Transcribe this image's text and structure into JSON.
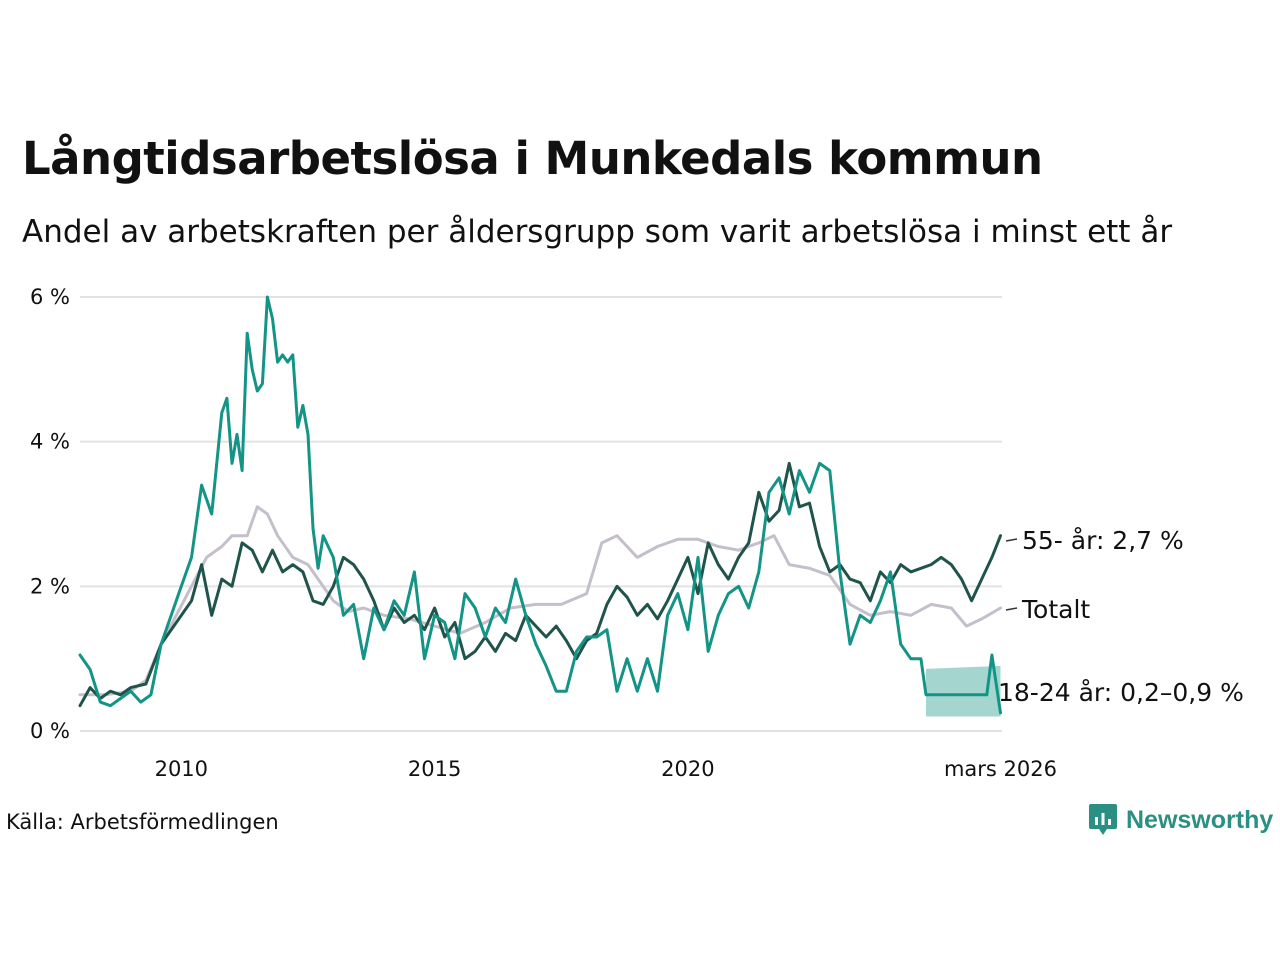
{
  "title": "Långtidsarbetslösa i Munkedals kommun",
  "subtitle": "Andel av arbetskraften per åldersgrupp som varit arbetslösa i minst ett år",
  "source": "Källa: Arbetsförmedlingen",
  "brand": {
    "name": "Newsworthy",
    "icon": "newsworthy-logo-icon"
  },
  "colors": {
    "older": "#20544a",
    "total": "#c4bfcb",
    "young": "#139486",
    "band": "#9fd4cc",
    "grid": "#e2e2e2"
  },
  "chart_data": {
    "type": "line",
    "title": "Långtidsarbetslösa i Munkedals kommun",
    "xlabel": "",
    "ylabel": "",
    "xlim": [
      2008.0,
      2026.2
    ],
    "ylim": [
      0,
      6
    ],
    "y_ticks": [
      0,
      2,
      4,
      6
    ],
    "y_tick_labels": [
      "0 %",
      "2 %",
      "4 %",
      "6 %"
    ],
    "x_ticks": [
      2010,
      2015,
      2020,
      2026.17
    ],
    "x_tick_labels": [
      "2010",
      "2015",
      "2020",
      "mars 2026"
    ],
    "grid": true,
    "series": [
      {
        "name": "Totalt",
        "label": "Totalt",
        "color_key": "total",
        "points": [
          [
            2008.0,
            0.5
          ],
          [
            2008.5,
            0.5
          ],
          [
            2009.0,
            0.55
          ],
          [
            2009.3,
            0.7
          ],
          [
            2009.6,
            1.2
          ],
          [
            2009.9,
            1.6
          ],
          [
            2010.2,
            2.0
          ],
          [
            2010.5,
            2.4
          ],
          [
            2010.8,
            2.55
          ],
          [
            2011.0,
            2.7
          ],
          [
            2011.3,
            2.7
          ],
          [
            2011.5,
            3.1
          ],
          [
            2011.7,
            3.0
          ],
          [
            2011.9,
            2.7
          ],
          [
            2012.2,
            2.4
          ],
          [
            2012.5,
            2.3
          ],
          [
            2012.7,
            2.1
          ],
          [
            2013.0,
            1.8
          ],
          [
            2013.3,
            1.65
          ],
          [
            2013.6,
            1.7
          ],
          [
            2014.0,
            1.6
          ],
          [
            2014.5,
            1.55
          ],
          [
            2015.0,
            1.45
          ],
          [
            2015.5,
            1.35
          ],
          [
            2016.0,
            1.5
          ],
          [
            2016.5,
            1.7
          ],
          [
            2017.0,
            1.75
          ],
          [
            2017.5,
            1.75
          ],
          [
            2018.0,
            1.9
          ],
          [
            2018.3,
            2.6
          ],
          [
            2018.6,
            2.7
          ],
          [
            2019.0,
            2.4
          ],
          [
            2019.4,
            2.55
          ],
          [
            2019.8,
            2.65
          ],
          [
            2020.2,
            2.65
          ],
          [
            2020.6,
            2.55
          ],
          [
            2021.0,
            2.5
          ],
          [
            2021.4,
            2.6
          ],
          [
            2021.7,
            2.7
          ],
          [
            2022.0,
            2.3
          ],
          [
            2022.4,
            2.25
          ],
          [
            2022.8,
            2.15
          ],
          [
            2023.2,
            1.75
          ],
          [
            2023.6,
            1.6
          ],
          [
            2024.0,
            1.65
          ],
          [
            2024.4,
            1.6
          ],
          [
            2024.8,
            1.75
          ],
          [
            2025.2,
            1.7
          ],
          [
            2025.5,
            1.45
          ],
          [
            2025.8,
            1.55
          ],
          [
            2026.17,
            1.7
          ]
        ]
      },
      {
        "name": "55- år",
        "label": "55- år: 2,7 %",
        "color_key": "older",
        "points": [
          [
            2008.0,
            0.35
          ],
          [
            2008.2,
            0.6
          ],
          [
            2008.4,
            0.45
          ],
          [
            2008.6,
            0.55
          ],
          [
            2008.8,
            0.5
          ],
          [
            2009.0,
            0.6
          ],
          [
            2009.3,
            0.65
          ],
          [
            2009.6,
            1.2
          ],
          [
            2009.9,
            1.5
          ],
          [
            2010.2,
            1.8
          ],
          [
            2010.4,
            2.3
          ],
          [
            2010.6,
            1.6
          ],
          [
            2010.8,
            2.1
          ],
          [
            2011.0,
            2.0
          ],
          [
            2011.2,
            2.6
          ],
          [
            2011.4,
            2.5
          ],
          [
            2011.6,
            2.2
          ],
          [
            2011.8,
            2.5
          ],
          [
            2012.0,
            2.2
          ],
          [
            2012.2,
            2.3
          ],
          [
            2012.4,
            2.2
          ],
          [
            2012.6,
            1.8
          ],
          [
            2012.8,
            1.75
          ],
          [
            2013.0,
            2.0
          ],
          [
            2013.2,
            2.4
          ],
          [
            2013.4,
            2.3
          ],
          [
            2013.6,
            2.1
          ],
          [
            2013.8,
            1.8
          ],
          [
            2014.0,
            1.4
          ],
          [
            2014.2,
            1.7
          ],
          [
            2014.4,
            1.5
          ],
          [
            2014.6,
            1.6
          ],
          [
            2014.8,
            1.4
          ],
          [
            2015.0,
            1.7
          ],
          [
            2015.2,
            1.3
          ],
          [
            2015.4,
            1.5
          ],
          [
            2015.6,
            1.0
          ],
          [
            2015.8,
            1.1
          ],
          [
            2016.0,
            1.3
          ],
          [
            2016.2,
            1.1
          ],
          [
            2016.4,
            1.35
          ],
          [
            2016.6,
            1.25
          ],
          [
            2016.8,
            1.6
          ],
          [
            2017.0,
            1.45
          ],
          [
            2017.2,
            1.3
          ],
          [
            2017.4,
            1.45
          ],
          [
            2017.6,
            1.25
          ],
          [
            2017.8,
            1.0
          ],
          [
            2018.0,
            1.25
          ],
          [
            2018.2,
            1.35
          ],
          [
            2018.4,
            1.75
          ],
          [
            2018.6,
            2.0
          ],
          [
            2018.8,
            1.85
          ],
          [
            2019.0,
            1.6
          ],
          [
            2019.2,
            1.75
          ],
          [
            2019.4,
            1.55
          ],
          [
            2019.6,
            1.8
          ],
          [
            2019.8,
            2.1
          ],
          [
            2020.0,
            2.4
          ],
          [
            2020.2,
            1.9
          ],
          [
            2020.4,
            2.6
          ],
          [
            2020.6,
            2.3
          ],
          [
            2020.8,
            2.1
          ],
          [
            2021.0,
            2.4
          ],
          [
            2021.2,
            2.6
          ],
          [
            2021.4,
            3.3
          ],
          [
            2021.6,
            2.9
          ],
          [
            2021.8,
            3.05
          ],
          [
            2022.0,
            3.7
          ],
          [
            2022.2,
            3.1
          ],
          [
            2022.4,
            3.15
          ],
          [
            2022.6,
            2.55
          ],
          [
            2022.8,
            2.2
          ],
          [
            2023.0,
            2.3
          ],
          [
            2023.2,
            2.1
          ],
          [
            2023.4,
            2.05
          ],
          [
            2023.6,
            1.8
          ],
          [
            2023.8,
            2.2
          ],
          [
            2024.0,
            2.05
          ],
          [
            2024.2,
            2.3
          ],
          [
            2024.4,
            2.2
          ],
          [
            2024.6,
            2.25
          ],
          [
            2024.8,
            2.3
          ],
          [
            2025.0,
            2.4
          ],
          [
            2025.2,
            2.3
          ],
          [
            2025.4,
            2.1
          ],
          [
            2025.6,
            1.8
          ],
          [
            2025.8,
            2.1
          ],
          [
            2026.0,
            2.4
          ],
          [
            2026.17,
            2.7
          ]
        ]
      },
      {
        "name": "18-24 år",
        "label": "18-24 år: 0,2–0,9 %",
        "color_key": "young",
        "points": [
          [
            2008.0,
            1.05
          ],
          [
            2008.2,
            0.85
          ],
          [
            2008.4,
            0.4
          ],
          [
            2008.6,
            0.35
          ],
          [
            2008.8,
            0.45
          ],
          [
            2009.0,
            0.55
          ],
          [
            2009.2,
            0.4
          ],
          [
            2009.4,
            0.5
          ],
          [
            2009.6,
            1.2
          ],
          [
            2009.8,
            1.6
          ],
          [
            2010.0,
            2.0
          ],
          [
            2010.2,
            2.4
          ],
          [
            2010.4,
            3.4
          ],
          [
            2010.6,
            3.0
          ],
          [
            2010.8,
            4.4
          ],
          [
            2010.9,
            4.6
          ],
          [
            2011.0,
            3.7
          ],
          [
            2011.1,
            4.1
          ],
          [
            2011.2,
            3.6
          ],
          [
            2011.3,
            5.5
          ],
          [
            2011.4,
            5.0
          ],
          [
            2011.5,
            4.7
          ],
          [
            2011.6,
            4.8
          ],
          [
            2011.7,
            6.0
          ],
          [
            2011.8,
            5.7
          ],
          [
            2011.9,
            5.1
          ],
          [
            2012.0,
            5.2
          ],
          [
            2012.1,
            5.1
          ],
          [
            2012.2,
            5.2
          ],
          [
            2012.3,
            4.2
          ],
          [
            2012.4,
            4.5
          ],
          [
            2012.5,
            4.1
          ],
          [
            2012.6,
            2.8
          ],
          [
            2012.7,
            2.25
          ],
          [
            2012.8,
            2.7
          ],
          [
            2013.0,
            2.4
          ],
          [
            2013.2,
            1.6
          ],
          [
            2013.4,
            1.75
          ],
          [
            2013.6,
            1.0
          ],
          [
            2013.8,
            1.7
          ],
          [
            2014.0,
            1.4
          ],
          [
            2014.2,
            1.8
          ],
          [
            2014.4,
            1.6
          ],
          [
            2014.6,
            2.2
          ],
          [
            2014.8,
            1.0
          ],
          [
            2015.0,
            1.6
          ],
          [
            2015.2,
            1.5
          ],
          [
            2015.4,
            1.0
          ],
          [
            2015.6,
            1.9
          ],
          [
            2015.8,
            1.7
          ],
          [
            2016.0,
            1.3
          ],
          [
            2016.2,
            1.7
          ],
          [
            2016.4,
            1.5
          ],
          [
            2016.6,
            2.1
          ],
          [
            2016.8,
            1.6
          ],
          [
            2017.0,
            1.2
          ],
          [
            2017.2,
            0.9
          ],
          [
            2017.4,
            0.55
          ],
          [
            2017.6,
            0.55
          ],
          [
            2017.8,
            1.1
          ],
          [
            2018.0,
            1.3
          ],
          [
            2018.2,
            1.3
          ],
          [
            2018.4,
            1.4
          ],
          [
            2018.6,
            0.55
          ],
          [
            2018.8,
            1.0
          ],
          [
            2019.0,
            0.55
          ],
          [
            2019.2,
            1.0
          ],
          [
            2019.4,
            0.55
          ],
          [
            2019.6,
            1.6
          ],
          [
            2019.8,
            1.9
          ],
          [
            2020.0,
            1.4
          ],
          [
            2020.2,
            2.4
          ],
          [
            2020.4,
            1.1
          ],
          [
            2020.6,
            1.6
          ],
          [
            2020.8,
            1.9
          ],
          [
            2021.0,
            2.0
          ],
          [
            2021.2,
            1.7
          ],
          [
            2021.4,
            2.2
          ],
          [
            2021.6,
            3.3
          ],
          [
            2021.8,
            3.5
          ],
          [
            2022.0,
            3.0
          ],
          [
            2022.2,
            3.6
          ],
          [
            2022.4,
            3.3
          ],
          [
            2022.6,
            3.7
          ],
          [
            2022.8,
            3.6
          ],
          [
            2023.0,
            2.2
          ],
          [
            2023.2,
            1.2
          ],
          [
            2023.4,
            1.6
          ],
          [
            2023.6,
            1.5
          ],
          [
            2023.8,
            1.8
          ],
          [
            2024.0,
            2.2
          ],
          [
            2024.2,
            1.2
          ],
          [
            2024.4,
            1.0
          ],
          [
            2024.6,
            1.0
          ],
          [
            2024.7,
            0.5
          ],
          [
            2025.0,
            0.5
          ],
          [
            2025.5,
            0.5
          ],
          [
            2025.9,
            0.5
          ],
          [
            2026.0,
            1.05
          ],
          [
            2026.17,
            0.25
          ]
        ],
        "range_band": {
          "x_start": 2024.7,
          "x_end": 2026.17,
          "low": 0.2,
          "high": 0.9
        }
      }
    ]
  }
}
